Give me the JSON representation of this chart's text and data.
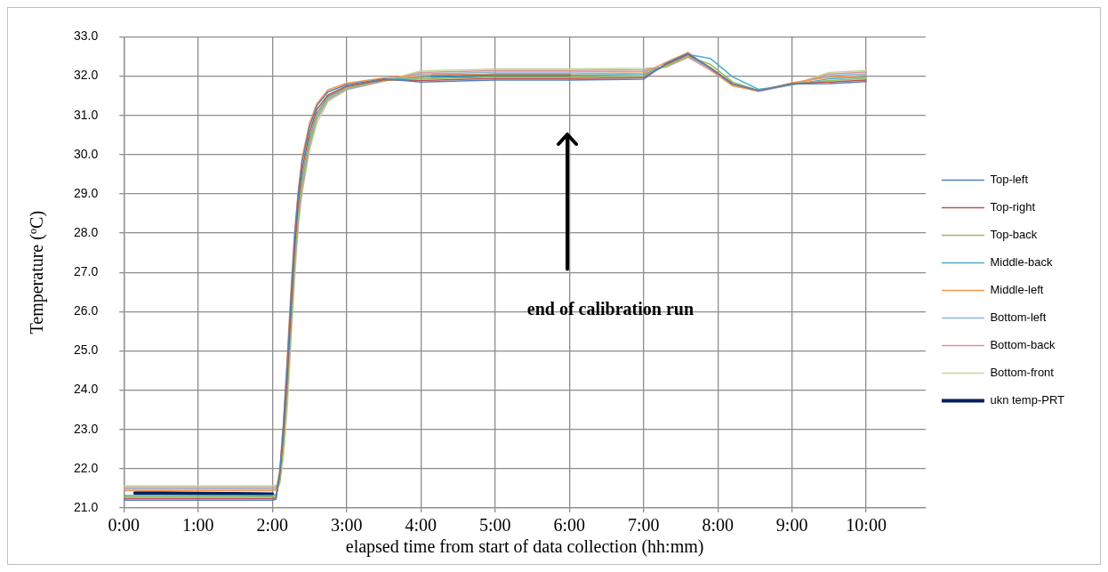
{
  "chart_data": {
    "type": "line",
    "xlabel": "elapsed time from start of data collection (hh:mm)",
    "ylabel": "Temperature (ºC)",
    "x": [
      0,
      0.5,
      1,
      1.5,
      2,
      2.05,
      2.1,
      2.15,
      2.2,
      2.25,
      2.3,
      2.35,
      2.4,
      2.5,
      2.6,
      2.75,
      3,
      3.5,
      4,
      5,
      6,
      7,
      7.3,
      7.6,
      7.9,
      8.2,
      8.55,
      9,
      9.5,
      10
    ],
    "xlim": [
      0,
      10.8
    ],
    "xticks": [
      {
        "value": 0,
        "label": "0:00"
      },
      {
        "value": 1,
        "label": "1:00"
      },
      {
        "value": 2,
        "label": "2:00"
      },
      {
        "value": 3,
        "label": "3:00"
      },
      {
        "value": 4,
        "label": "4:00"
      },
      {
        "value": 5,
        "label": "5:00"
      },
      {
        "value": 6,
        "label": "6:00"
      },
      {
        "value": 7,
        "label": "7:00"
      },
      {
        "value": 8,
        "label": "8:00"
      },
      {
        "value": 9,
        "label": "9:00"
      },
      {
        "value": 10,
        "label": "10:00"
      }
    ],
    "ylim": [
      21,
      33
    ],
    "yticks": [
      {
        "value": 21,
        "label": "21.0"
      },
      {
        "value": 22,
        "label": "22.0"
      },
      {
        "value": 23,
        "label": "23.0"
      },
      {
        "value": 24,
        "label": "24.0"
      },
      {
        "value": 25,
        "label": "25.0"
      },
      {
        "value": 26,
        "label": "26.0"
      },
      {
        "value": 27,
        "label": "27.0"
      },
      {
        "value": 28,
        "label": "28.0"
      },
      {
        "value": 29,
        "label": "29.0"
      },
      {
        "value": 30,
        "label": "30.0"
      },
      {
        "value": 31,
        "label": "31.0"
      },
      {
        "value": 32,
        "label": "32.0"
      },
      {
        "value": 33,
        "label": "33.0"
      }
    ],
    "grid": true,
    "legend": "right",
    "marker": "none",
    "line_style": "solid",
    "annotations": [
      "end of calibration run"
    ],
    "series": [
      {
        "name": "Top-left",
        "color": "#4f81bd",
        "values": [
          21.2,
          21.2,
          21.2,
          21.2,
          21.2,
          21.22,
          21.9,
          23.1,
          24.6,
          26.3,
          27.9,
          29.0,
          29.8,
          30.7,
          31.25,
          31.6,
          31.78,
          31.93,
          31.85,
          31.9,
          31.9,
          31.92,
          32.32,
          32.58,
          32.2,
          31.8,
          31.63,
          31.8,
          31.81,
          31.86
        ]
      },
      {
        "name": "Top-right",
        "color": "#c0504d",
        "values": [
          21.24,
          21.24,
          21.24,
          21.24,
          21.24,
          21.26,
          21.85,
          22.9,
          24.3,
          26.0,
          27.6,
          28.8,
          29.6,
          30.55,
          31.15,
          31.52,
          31.74,
          31.91,
          31.89,
          31.94,
          31.94,
          31.96,
          32.3,
          32.55,
          32.22,
          31.8,
          31.63,
          31.8,
          31.85,
          31.9
        ]
      },
      {
        "name": "Top-back",
        "color": "#9bbb59",
        "values": [
          21.28,
          21.28,
          21.28,
          21.28,
          21.28,
          21.3,
          21.7,
          22.6,
          24.0,
          25.7,
          27.3,
          28.5,
          29.3,
          30.3,
          31.0,
          31.45,
          31.7,
          31.89,
          31.93,
          31.98,
          31.98,
          32.0,
          32.26,
          32.5,
          32.3,
          31.85,
          31.63,
          31.79,
          31.89,
          31.94
        ]
      },
      {
        "name": "Middle-back",
        "color": "#4bacc6",
        "values": [
          21.32,
          21.32,
          21.32,
          21.32,
          21.32,
          21.34,
          21.72,
          22.7,
          24.1,
          25.8,
          27.4,
          28.6,
          29.4,
          30.4,
          31.05,
          31.48,
          31.71,
          31.9,
          31.97,
          32.02,
          32.02,
          32.04,
          32.28,
          32.55,
          32.45,
          31.98,
          31.66,
          31.78,
          31.93,
          31.98
        ]
      },
      {
        "name": "Middle-left",
        "color": "#f79646",
        "values": [
          21.44,
          21.44,
          21.44,
          21.44,
          21.44,
          21.46,
          21.95,
          23.2,
          24.8,
          26.5,
          28.0,
          29.1,
          29.9,
          30.8,
          31.3,
          31.65,
          31.82,
          31.95,
          32.01,
          32.06,
          32.06,
          32.08,
          32.35,
          32.6,
          32.18,
          31.75,
          31.62,
          31.83,
          31.97,
          32.02
        ]
      },
      {
        "name": "Bottom-left",
        "color": "#8eb4e3",
        "values": [
          21.48,
          21.48,
          21.48,
          21.48,
          21.48,
          21.5,
          21.75,
          22.7,
          24.0,
          25.6,
          27.2,
          28.4,
          29.2,
          30.25,
          30.95,
          31.42,
          31.68,
          31.88,
          32.05,
          32.1,
          32.1,
          32.12,
          32.25,
          32.5,
          32.2,
          31.8,
          31.62,
          31.79,
          32.01,
          32.06
        ]
      },
      {
        "name": "Bottom-back",
        "color": "#d99694",
        "values": [
          21.52,
          21.52,
          21.52,
          21.52,
          21.52,
          21.54,
          21.7,
          22.6,
          23.9,
          25.5,
          27.1,
          28.3,
          29.1,
          30.2,
          30.9,
          31.4,
          31.66,
          31.87,
          32.09,
          32.14,
          32.14,
          32.16,
          32.24,
          32.48,
          32.15,
          31.76,
          31.61,
          31.78,
          32.05,
          32.1
        ]
      },
      {
        "name": "Bottom-front",
        "color": "#c3d69b",
        "values": [
          21.56,
          21.56,
          21.56,
          21.56,
          21.56,
          21.58,
          21.6,
          22.3,
          23.5,
          25.2,
          26.8,
          28.2,
          29.0,
          30.1,
          30.8,
          31.35,
          31.65,
          31.87,
          32.13,
          32.18,
          32.18,
          32.2,
          32.22,
          32.48,
          32.2,
          31.82,
          31.63,
          31.78,
          32.09,
          32.14
        ]
      },
      {
        "name": "ukn temp-PRT",
        "color": "#002060",
        "x": [
          0.15,
          0.5,
          1,
          1.5,
          2,
          3,
          4.15,
          4.5,
          5,
          5.5,
          6
        ],
        "values": [
          21.38,
          21.38,
          21.37,
          21.36,
          21.35,
          null,
          32.0,
          32.0,
          32.02,
          32.02,
          32.02
        ]
      }
    ]
  }
}
